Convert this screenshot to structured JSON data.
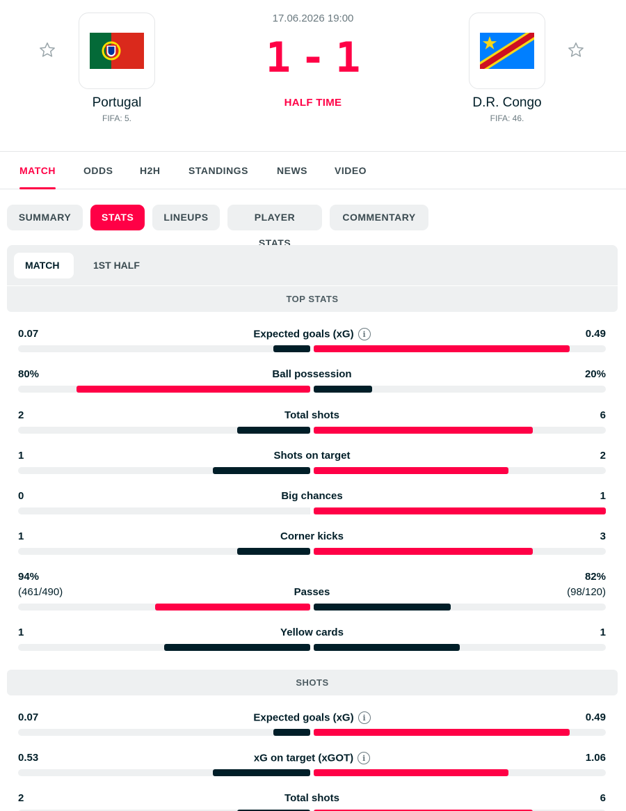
{
  "match": {
    "datetime": "17.06.2026 19:00",
    "home_score": "1",
    "separator": "-",
    "away_score": "1",
    "status": "HALF TIME"
  },
  "home": {
    "name": "Portugal",
    "rank": "FIFA: 5."
  },
  "away": {
    "name": "D.R. Congo",
    "rank": "FIFA: 46."
  },
  "tabs": [
    "MATCH",
    "ODDS",
    "H2H",
    "STANDINGS",
    "NEWS",
    "VIDEO"
  ],
  "subtabs": [
    "SUMMARY",
    "STATS",
    "LINEUPS",
    "PLAYER STATS",
    "COMMENTARY"
  ],
  "periods": [
    "MATCH",
    "1ST HALF"
  ],
  "colors": {
    "accent": "#ff0046",
    "dark": "#001e28",
    "track": "#eef0f1"
  },
  "sections": [
    {
      "title": "TOP STATS",
      "rows": [
        {
          "name": "Expected goals (xG)",
          "info": true,
          "left": "0.07",
          "right": "0.49",
          "left_frac": 0.125,
          "right_frac": 0.875,
          "left_color": "dark",
          "right_color": "red"
        },
        {
          "name": "Ball possession",
          "left": "80%",
          "right": "20%",
          "left_frac": 0.8,
          "right_frac": 0.2,
          "left_color": "red",
          "right_color": "dark"
        },
        {
          "name": "Total shots",
          "left": "2",
          "right": "6",
          "left_frac": 0.25,
          "right_frac": 0.75,
          "left_color": "dark",
          "right_color": "red"
        },
        {
          "name": "Shots on target",
          "left": "1",
          "right": "2",
          "left_frac": 0.333,
          "right_frac": 0.667,
          "left_color": "dark",
          "right_color": "red"
        },
        {
          "name": "Big chances",
          "left": "0",
          "right": "1",
          "left_frac": 0.0,
          "right_frac": 1.0,
          "left_color": "dark",
          "right_color": "red"
        },
        {
          "name": "Corner kicks",
          "left": "1",
          "right": "3",
          "left_frac": 0.25,
          "right_frac": 0.75,
          "left_color": "dark",
          "right_color": "red"
        },
        {
          "name": "Passes",
          "left": "94%",
          "right": "82%",
          "left_sub": "(461/490)",
          "right_sub": "(98/120)",
          "left_frac": 0.53,
          "right_frac": 0.47,
          "left_color": "red",
          "right_color": "dark"
        },
        {
          "name": "Yellow cards",
          "left": "1",
          "right": "1",
          "left_frac": 0.5,
          "right_frac": 0.5,
          "left_color": "dark",
          "right_color": "dark"
        }
      ]
    },
    {
      "title": "SHOTS",
      "rows": [
        {
          "name": "Expected goals (xG)",
          "info": true,
          "left": "0.07",
          "right": "0.49",
          "left_frac": 0.125,
          "right_frac": 0.875,
          "left_color": "dark",
          "right_color": "red"
        },
        {
          "name": "xG on target (xGOT)",
          "info": true,
          "left": "0.53",
          "right": "1.06",
          "left_frac": 0.333,
          "right_frac": 0.667,
          "left_color": "dark",
          "right_color": "red"
        },
        {
          "name": "Total shots",
          "left": "2",
          "right": "6",
          "left_frac": 0.25,
          "right_frac": 0.75,
          "left_color": "dark",
          "right_color": "red"
        }
      ]
    }
  ]
}
